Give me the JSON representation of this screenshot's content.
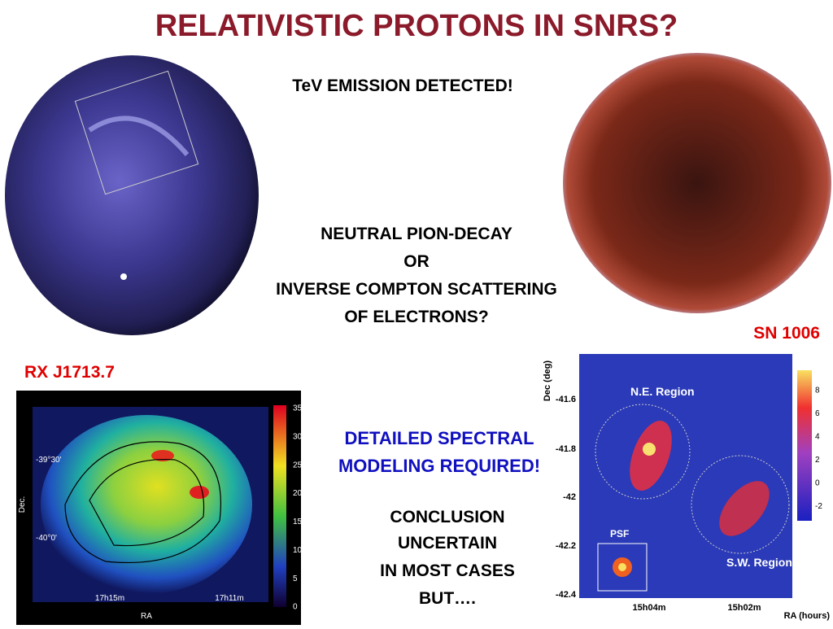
{
  "title": "RELATIVISTIC PROTONS IN SNRS?",
  "tev": "TeV EMISSION DETECTED!",
  "question": [
    "NEUTRAL PION-DECAY",
    "OR",
    "INVERSE COMPTON SCATTERING",
    "OF ELECTRONS?"
  ],
  "labels": {
    "rx": "RX J1713.7",
    "sn": "SN 1006"
  },
  "spectral": [
    "DETAILED SPECTRAL",
    "MODELING REQUIRED!"
  ],
  "conclusion": [
    "CONCLUSION",
    "UNCERTAIN",
    "IN MOST CASES",
    "BUT…."
  ],
  "rx_map": {
    "y_label": "Dec.",
    "x_label": "RA",
    "y_ticks": [
      "-39°30'",
      "-40°0'"
    ],
    "x_ticks": [
      "17h15m",
      "17h11m"
    ],
    "colorbar": [
      "35",
      "30",
      "25",
      "20",
      "15",
      "10",
      "5",
      "0"
    ]
  },
  "sn_map": {
    "y_label": "Dec (deg)",
    "x_label": "RA (hours)",
    "y_ticks": [
      "-41.6",
      "-41.8",
      "-42",
      "-42.2",
      "-42.4"
    ],
    "x_ticks": [
      "15h04m",
      "15h02m"
    ],
    "colorbar": [
      "8",
      "6",
      "4",
      "2",
      "0",
      "-2"
    ],
    "regions": [
      "N.E. Region",
      "S.W. Region",
      "PSF"
    ]
  }
}
